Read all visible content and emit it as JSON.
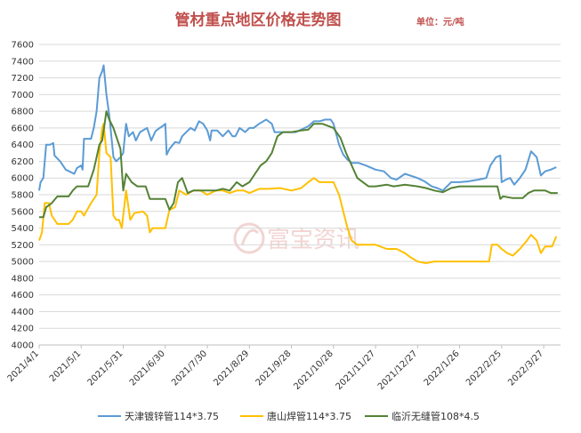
{
  "chart_data": {
    "type": "line",
    "title": "管材重点地区价格走势图",
    "unit_label": "单位：元/吨",
    "watermark": "富宝资讯",
    "ylim": [
      4000,
      7600
    ],
    "ystep": 200,
    "xlim": [
      "2021-04-01",
      "2022-04-08"
    ],
    "grid": "horizontal",
    "legend_position": "bottom",
    "x_ticks": [
      "2021/4/1",
      "2021/5/1",
      "2021/5/31",
      "2021/6/30",
      "2021/7/30",
      "2021/8/29",
      "2021/9/28",
      "2021/10/28",
      "2021/11/27",
      "2021/12/27",
      "2022/1/26",
      "2022/2/25",
      "2022/3/27"
    ],
    "series": [
      {
        "name": "天津镀锌管114*3.75",
        "color": "#5b9bd5",
        "points": [
          [
            "2021-04-01",
            5850
          ],
          [
            "2021-04-02",
            5950
          ],
          [
            "2021-04-04",
            6000
          ],
          [
            "2021-04-06",
            6400
          ],
          [
            "2021-04-09",
            6400
          ],
          [
            "2021-04-11",
            6420
          ],
          [
            "2021-04-12",
            6270
          ],
          [
            "2021-04-16",
            6200
          ],
          [
            "2021-04-20",
            6100
          ],
          [
            "2021-04-26",
            6050
          ],
          [
            "2021-04-28",
            6120
          ],
          [
            "2021-05-01",
            6150
          ],
          [
            "2021-05-02",
            6100
          ],
          [
            "2021-05-03",
            6470
          ],
          [
            "2021-05-08",
            6470
          ],
          [
            "2021-05-10",
            6600
          ],
          [
            "2021-05-12",
            6800
          ],
          [
            "2021-05-14",
            7200
          ],
          [
            "2021-05-16",
            7280
          ],
          [
            "2021-05-17",
            7350
          ],
          [
            "2021-05-19",
            7000
          ],
          [
            "2021-05-21",
            6750
          ],
          [
            "2021-05-24",
            6250
          ],
          [
            "2021-05-26",
            6200
          ],
          [
            "2021-05-29",
            6250
          ],
          [
            "2021-05-31",
            6300
          ],
          [
            "2021-06-02",
            6650
          ],
          [
            "2021-06-04",
            6500
          ],
          [
            "2021-06-07",
            6550
          ],
          [
            "2021-06-09",
            6450
          ],
          [
            "2021-06-12",
            6550
          ],
          [
            "2021-06-17",
            6600
          ],
          [
            "2021-06-20",
            6450
          ],
          [
            "2021-06-23",
            6560
          ],
          [
            "2021-06-26",
            6600
          ],
          [
            "2021-06-28",
            6620
          ],
          [
            "2021-06-30",
            6650
          ],
          [
            "2021-07-01",
            6280
          ],
          [
            "2021-07-03",
            6350
          ],
          [
            "2021-07-07",
            6430
          ],
          [
            "2021-07-10",
            6420
          ],
          [
            "2021-07-12",
            6500
          ],
          [
            "2021-07-15",
            6550
          ],
          [
            "2021-07-18",
            6600
          ],
          [
            "2021-07-21",
            6570
          ],
          [
            "2021-07-24",
            6680
          ],
          [
            "2021-07-27",
            6650
          ],
          [
            "2021-07-30",
            6570
          ],
          [
            "2021-08-01",
            6450
          ],
          [
            "2021-08-02",
            6570
          ],
          [
            "2021-08-06",
            6570
          ],
          [
            "2021-08-10",
            6500
          ],
          [
            "2021-08-14",
            6570
          ],
          [
            "2021-08-17",
            6500
          ],
          [
            "2021-08-19",
            6500
          ],
          [
            "2021-08-22",
            6600
          ],
          [
            "2021-08-26",
            6550
          ],
          [
            "2021-08-29",
            6600
          ],
          [
            "2021-09-01",
            6600
          ],
          [
            "2021-09-05",
            6650
          ],
          [
            "2021-09-10",
            6700
          ],
          [
            "2021-09-14",
            6650
          ],
          [
            "2021-09-16",
            6550
          ],
          [
            "2021-09-21",
            6550
          ],
          [
            "2021-09-24",
            6550
          ],
          [
            "2021-09-28",
            6550
          ],
          [
            "2021-10-01",
            6550
          ],
          [
            "2021-10-05",
            6580
          ],
          [
            "2021-10-10",
            6620
          ],
          [
            "2021-10-14",
            6680
          ],
          [
            "2021-10-18",
            6680
          ],
          [
            "2021-10-22",
            6700
          ],
          [
            "2021-10-26",
            6700
          ],
          [
            "2021-10-28",
            6650
          ],
          [
            "2021-11-01",
            6400
          ],
          [
            "2021-11-04",
            6280
          ],
          [
            "2021-11-07",
            6220
          ],
          [
            "2021-11-10",
            6180
          ],
          [
            "2021-11-15",
            6180
          ],
          [
            "2021-11-20",
            6150
          ],
          [
            "2021-11-27",
            6100
          ],
          [
            "2021-12-03",
            6080
          ],
          [
            "2021-12-08",
            6000
          ],
          [
            "2021-12-12",
            5980
          ],
          [
            "2021-12-18",
            6050
          ],
          [
            "2021-12-27",
            6000
          ],
          [
            "2022-01-01",
            5960
          ],
          [
            "2022-01-06",
            5900
          ],
          [
            "2022-01-10",
            5880
          ],
          [
            "2022-01-14",
            5850
          ],
          [
            "2022-01-20",
            5950
          ],
          [
            "2022-01-26",
            5950
          ],
          [
            "2022-02-01",
            5960
          ],
          [
            "2022-02-08",
            5980
          ],
          [
            "2022-02-14",
            6000
          ],
          [
            "2022-02-17",
            6150
          ],
          [
            "2022-02-21",
            6250
          ],
          [
            "2022-02-24",
            6270
          ],
          [
            "2022-02-25",
            5950
          ],
          [
            "2022-02-28",
            5980
          ],
          [
            "2022-03-03",
            6000
          ],
          [
            "2022-03-06",
            5920
          ],
          [
            "2022-03-10",
            6000
          ],
          [
            "2022-03-14",
            6100
          ],
          [
            "2022-03-18",
            6320
          ],
          [
            "2022-03-22",
            6250
          ],
          [
            "2022-03-25",
            6030
          ],
          [
            "2022-03-28",
            6080
          ],
          [
            "2022-04-01",
            6100
          ],
          [
            "2022-04-05",
            6130
          ]
        ]
      },
      {
        "name": "唐山焊管114*3.75",
        "color": "#ffc000",
        "points": [
          [
            "2021-04-01",
            5250
          ],
          [
            "2021-04-03",
            5350
          ],
          [
            "2021-04-05",
            5700
          ],
          [
            "2021-04-08",
            5700
          ],
          [
            "2021-04-10",
            5550
          ],
          [
            "2021-04-14",
            5450
          ],
          [
            "2021-04-22",
            5450
          ],
          [
            "2021-04-25",
            5500
          ],
          [
            "2021-04-28",
            5600
          ],
          [
            "2021-05-01",
            5600
          ],
          [
            "2021-05-03",
            5550
          ],
          [
            "2021-05-08",
            5700
          ],
          [
            "2021-05-12",
            5800
          ],
          [
            "2021-05-14",
            6300
          ],
          [
            "2021-05-16",
            6600
          ],
          [
            "2021-05-17",
            6650
          ],
          [
            "2021-05-19",
            6300
          ],
          [
            "2021-05-22",
            6250
          ],
          [
            "2021-05-24",
            5550
          ],
          [
            "2021-05-26",
            5500
          ],
          [
            "2021-05-28",
            5500
          ],
          [
            "2021-05-30",
            5400
          ],
          [
            "2021-06-02",
            5850
          ],
          [
            "2021-06-05",
            5500
          ],
          [
            "2021-06-08",
            5580
          ],
          [
            "2021-06-14",
            5600
          ],
          [
            "2021-06-17",
            5550
          ],
          [
            "2021-06-19",
            5350
          ],
          [
            "2021-06-21",
            5400
          ],
          [
            "2021-06-30",
            5400
          ],
          [
            "2021-07-03",
            5620
          ],
          [
            "2021-07-07",
            5650
          ],
          [
            "2021-07-10",
            5850
          ],
          [
            "2021-07-15",
            5800
          ],
          [
            "2021-07-20",
            5850
          ],
          [
            "2021-07-25",
            5850
          ],
          [
            "2021-07-30",
            5800
          ],
          [
            "2021-08-05",
            5850
          ],
          [
            "2021-08-10",
            5850
          ],
          [
            "2021-08-15",
            5820
          ],
          [
            "2021-08-20",
            5850
          ],
          [
            "2021-08-25",
            5850
          ],
          [
            "2021-08-29",
            5820
          ],
          [
            "2021-09-05",
            5870
          ],
          [
            "2021-09-12",
            5870
          ],
          [
            "2021-09-20",
            5880
          ],
          [
            "2021-09-28",
            5850
          ],
          [
            "2021-10-05",
            5880
          ],
          [
            "2021-10-10",
            5950
          ],
          [
            "2021-10-14",
            6000
          ],
          [
            "2021-10-18",
            5950
          ],
          [
            "2021-10-28",
            5950
          ],
          [
            "2021-11-01",
            5800
          ],
          [
            "2021-11-04",
            5600
          ],
          [
            "2021-11-07",
            5400
          ],
          [
            "2021-11-10",
            5250
          ],
          [
            "2021-11-14",
            5200
          ],
          [
            "2021-11-27",
            5200
          ],
          [
            "2021-12-05",
            5150
          ],
          [
            "2021-12-12",
            5150
          ],
          [
            "2021-12-18",
            5100
          ],
          [
            "2021-12-22",
            5050
          ],
          [
            "2021-12-27",
            5000
          ],
          [
            "2022-01-02",
            4980
          ],
          [
            "2022-01-08",
            5000
          ],
          [
            "2022-01-14",
            5000
          ],
          [
            "2022-01-20",
            5000
          ],
          [
            "2022-01-26",
            5000
          ],
          [
            "2022-02-05",
            5000
          ],
          [
            "2022-02-12",
            5000
          ],
          [
            "2022-02-16",
            5000
          ],
          [
            "2022-02-18",
            5200
          ],
          [
            "2022-02-22",
            5200
          ],
          [
            "2022-02-25",
            5150
          ],
          [
            "2022-03-01",
            5100
          ],
          [
            "2022-03-05",
            5070
          ],
          [
            "2022-03-10",
            5150
          ],
          [
            "2022-03-15",
            5250
          ],
          [
            "2022-03-18",
            5320
          ],
          [
            "2022-03-22",
            5250
          ],
          [
            "2022-03-25",
            5100
          ],
          [
            "2022-03-28",
            5180
          ],
          [
            "2022-04-02",
            5180
          ],
          [
            "2022-04-05",
            5300
          ]
        ]
      },
      {
        "name": "临沂无缝管108*4.5",
        "color": "#548235",
        "points": [
          [
            "2021-04-01",
            5530
          ],
          [
            "2021-04-04",
            5530
          ],
          [
            "2021-04-06",
            5650
          ],
          [
            "2021-04-10",
            5700
          ],
          [
            "2021-04-14",
            5780
          ],
          [
            "2021-04-22",
            5780
          ],
          [
            "2021-04-25",
            5850
          ],
          [
            "2021-04-28",
            5900
          ],
          [
            "2021-05-06",
            5900
          ],
          [
            "2021-05-10",
            6100
          ],
          [
            "2021-05-12",
            6250
          ],
          [
            "2021-05-14",
            6400
          ],
          [
            "2021-05-16",
            6450
          ],
          [
            "2021-05-19",
            6800
          ],
          [
            "2021-05-21",
            6700
          ],
          [
            "2021-05-24",
            6600
          ],
          [
            "2021-05-26",
            6500
          ],
          [
            "2021-05-29",
            6350
          ],
          [
            "2021-05-31",
            5850
          ],
          [
            "2021-06-02",
            6050
          ],
          [
            "2021-06-06",
            5950
          ],
          [
            "2021-06-10",
            5900
          ],
          [
            "2021-06-16",
            5900
          ],
          [
            "2021-06-19",
            5750
          ],
          [
            "2021-06-25",
            5750
          ],
          [
            "2021-06-30",
            5750
          ],
          [
            "2021-07-03",
            5620
          ],
          [
            "2021-07-06",
            5700
          ],
          [
            "2021-07-09",
            5950
          ],
          [
            "2021-07-12",
            6000
          ],
          [
            "2021-07-16",
            5820
          ],
          [
            "2021-07-20",
            5850
          ],
          [
            "2021-07-25",
            5850
          ],
          [
            "2021-07-30",
            5850
          ],
          [
            "2021-08-05",
            5850
          ],
          [
            "2021-08-10",
            5870
          ],
          [
            "2021-08-15",
            5850
          ],
          [
            "2021-08-20",
            5950
          ],
          [
            "2021-08-24",
            5900
          ],
          [
            "2021-08-29",
            5950
          ],
          [
            "2021-09-02",
            6050
          ],
          [
            "2021-09-06",
            6150
          ],
          [
            "2021-09-10",
            6200
          ],
          [
            "2021-09-14",
            6300
          ],
          [
            "2021-09-18",
            6500
          ],
          [
            "2021-09-22",
            6550
          ],
          [
            "2021-09-28",
            6550
          ],
          [
            "2021-10-05",
            6570
          ],
          [
            "2021-10-10",
            6580
          ],
          [
            "2021-10-14",
            6650
          ],
          [
            "2021-10-20",
            6650
          ],
          [
            "2021-10-28",
            6600
          ],
          [
            "2021-11-02",
            6480
          ],
          [
            "2021-11-06",
            6300
          ],
          [
            "2021-11-10",
            6150
          ],
          [
            "2021-11-14",
            6000
          ],
          [
            "2021-11-18",
            5950
          ],
          [
            "2021-11-22",
            5900
          ],
          [
            "2021-11-27",
            5900
          ],
          [
            "2021-12-05",
            5920
          ],
          [
            "2021-12-10",
            5900
          ],
          [
            "2021-12-18",
            5920
          ],
          [
            "2021-12-27",
            5900
          ],
          [
            "2022-01-02",
            5880
          ],
          [
            "2022-01-08",
            5850
          ],
          [
            "2022-01-14",
            5830
          ],
          [
            "2022-01-20",
            5880
          ],
          [
            "2022-01-26",
            5900
          ],
          [
            "2022-02-05",
            5900
          ],
          [
            "2022-02-12",
            5900
          ],
          [
            "2022-02-18",
            5900
          ],
          [
            "2022-02-22",
            5900
          ],
          [
            "2022-02-24",
            5750
          ],
          [
            "2022-02-26",
            5780
          ],
          [
            "2022-03-05",
            5760
          ],
          [
            "2022-03-12",
            5760
          ],
          [
            "2022-03-16",
            5820
          ],
          [
            "2022-03-20",
            5850
          ],
          [
            "2022-03-28",
            5850
          ],
          [
            "2022-04-01",
            5820
          ],
          [
            "2022-04-06",
            5820
          ]
        ]
      }
    ]
  }
}
